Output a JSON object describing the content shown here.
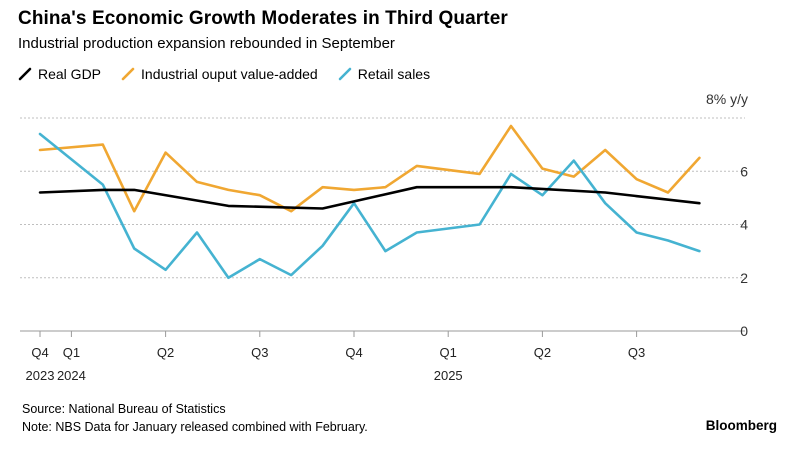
{
  "title": "China's Economic Growth Moderates in Third Quarter",
  "subtitle": "Industrial production expansion rebounded in September",
  "source": "Source: National Bureau of Statistics",
  "note": "Note: NBS Data for January released combined with February.",
  "brand": "Bloomberg",
  "colors": {
    "Real GDP": "#000000",
    "Industrial ouput value-added": "#f0a732",
    "Retail sales": "#45b3d1",
    "grid": "#bfbfbf"
  },
  "chart_data": {
    "type": "line",
    "title": "China's Economic Growth Moderates in Third Quarter",
    "subtitle": "Industrial production expansion rebounded in September",
    "ylabel": "% y/y",
    "ylim": [
      0,
      8
    ],
    "yticks": [
      0,
      2,
      4,
      6,
      8
    ],
    "ytick_labels": [
      "0",
      "2",
      "4",
      "6",
      "8% y/y"
    ],
    "grid": true,
    "legend_position": "top-left",
    "x_period": "monthly, Dec 2023 – Sep 2025",
    "x": [
      "2023-12",
      "2024-01",
      "2024-02",
      "2024-03",
      "2024-04",
      "2024-05",
      "2024-06",
      "2024-07",
      "2024-08",
      "2024-09",
      "2024-10",
      "2024-11",
      "2024-12",
      "2025-01",
      "2025-02",
      "2025-03",
      "2025-04",
      "2025-05",
      "2025-06",
      "2025-07",
      "2025-08",
      "2025-09"
    ],
    "x_tick_labels": [
      {
        "x": "2023-12",
        "top": "Q4",
        "bottom": "2023"
      },
      {
        "x": "2024-01",
        "top": "Q1",
        "bottom": "2024"
      },
      {
        "x": "2024-04",
        "top": "Q2",
        "bottom": ""
      },
      {
        "x": "2024-07",
        "top": "Q3",
        "bottom": ""
      },
      {
        "x": "2024-10",
        "top": "Q4",
        "bottom": ""
      },
      {
        "x": "2025-01",
        "top": "Q1",
        "bottom": "2025"
      },
      {
        "x": "2025-04",
        "top": "Q2",
        "bottom": ""
      },
      {
        "x": "2025-07",
        "top": "Q3",
        "bottom": ""
      }
    ],
    "series": [
      {
        "name": "Real GDP",
        "points": [
          [
            "2023-12",
            5.2
          ],
          [
            "2024-02",
            5.3
          ],
          [
            "2024-03",
            5.3
          ],
          [
            "2024-06",
            4.7
          ],
          [
            "2024-09",
            4.6
          ],
          [
            "2024-12",
            5.4
          ],
          [
            "2025-03",
            5.4
          ],
          [
            "2025-06",
            5.2
          ],
          [
            "2025-09",
            4.8
          ]
        ]
      },
      {
        "name": "Industrial ouput value-added",
        "points": [
          [
            "2023-12",
            6.8
          ],
          [
            "2024-02",
            7.0
          ],
          [
            "2024-03",
            4.5
          ],
          [
            "2024-04",
            6.7
          ],
          [
            "2024-05",
            5.6
          ],
          [
            "2024-06",
            5.3
          ],
          [
            "2024-07",
            5.1
          ],
          [
            "2024-08",
            4.5
          ],
          [
            "2024-09",
            5.4
          ],
          [
            "2024-10",
            5.3
          ],
          [
            "2024-11",
            5.4
          ],
          [
            "2024-12",
            6.2
          ],
          [
            "2025-02",
            5.9
          ],
          [
            "2025-03",
            7.7
          ],
          [
            "2025-04",
            6.1
          ],
          [
            "2025-05",
            5.8
          ],
          [
            "2025-06",
            6.8
          ],
          [
            "2025-07",
            5.7
          ],
          [
            "2025-08",
            5.2
          ],
          [
            "2025-09",
            6.5
          ]
        ]
      },
      {
        "name": "Retail sales",
        "points": [
          [
            "2023-12",
            7.4
          ],
          [
            "2024-02",
            5.5
          ],
          [
            "2024-03",
            3.1
          ],
          [
            "2024-04",
            2.3
          ],
          [
            "2024-05",
            3.7
          ],
          [
            "2024-06",
            2.0
          ],
          [
            "2024-07",
            2.7
          ],
          [
            "2024-08",
            2.1
          ],
          [
            "2024-09",
            3.2
          ],
          [
            "2024-10",
            4.8
          ],
          [
            "2024-11",
            3.0
          ],
          [
            "2024-12",
            3.7
          ],
          [
            "2025-02",
            4.0
          ],
          [
            "2025-03",
            5.9
          ],
          [
            "2025-04",
            5.1
          ],
          [
            "2025-05",
            6.4
          ],
          [
            "2025-06",
            4.8
          ],
          [
            "2025-07",
            3.7
          ],
          [
            "2025-08",
            3.4
          ],
          [
            "2025-09",
            3.0
          ]
        ]
      }
    ]
  }
}
